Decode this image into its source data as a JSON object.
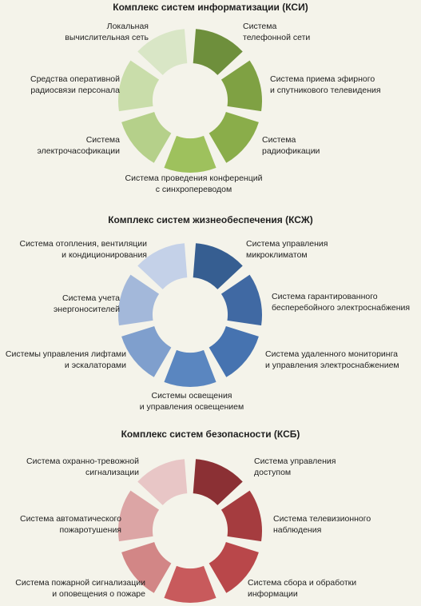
{
  "sections": [
    {
      "title": "Комплекс систем информатизации (КСИ)",
      "colors": [
        "#6e8f3c",
        "#7fa143",
        "#8aad4a",
        "#9ec15d",
        "#b5d08a",
        "#c9ddaa",
        "#d9e6c6"
      ],
      "labels": [
        "Система\nтелефонной сети",
        "Система приема эфирного\nи спутникового телевидения",
        "Система\nрадиофикации",
        "Система проведения конференций\nс синхропереводом",
        "Система\nэлектрочасофикации",
        "Средства оперативной\nрадиосвязи персонала",
        "Локальная\nвычислительная сеть"
      ]
    },
    {
      "title": "Комплекс систем жизнеобеспечения (КСЖ)",
      "colors": [
        "#365e91",
        "#4069a3",
        "#4673b0",
        "#5a86c0",
        "#7f9fcd",
        "#a3b8da",
        "#c4d1e8"
      ],
      "labels": [
        "Система управления\nмикроклиматом",
        "Система гарантированного\nбесперебойного электроснабжения",
        "Система удаленного мониторинга\nи управления электроснабжением",
        "Системы освещения\nи управления освещением",
        "Системы управления лифтами\nи эскалаторами",
        "Система учета\nэнергоносителей",
        "Система отопления, вентиляции\nи кондиционирования"
      ]
    },
    {
      "title": "Комплекс систем безопасности (КСБ)",
      "colors": [
        "#8b3034",
        "#a53c3f",
        "#b9474a",
        "#c85a5c",
        "#d28686",
        "#dca5a5",
        "#e8c6c6"
      ],
      "labels": [
        "Система управления\nдоступом",
        "Система телевизионного\nнаблюдения",
        "Система сбора и обработки\nинформации",
        "",
        "Система пожарной сигнализации\nи оповещения о пожаре",
        "Система автоматического\nпожаротушения",
        "Система охранно-тревожной\nсигнализации"
      ]
    }
  ]
}
